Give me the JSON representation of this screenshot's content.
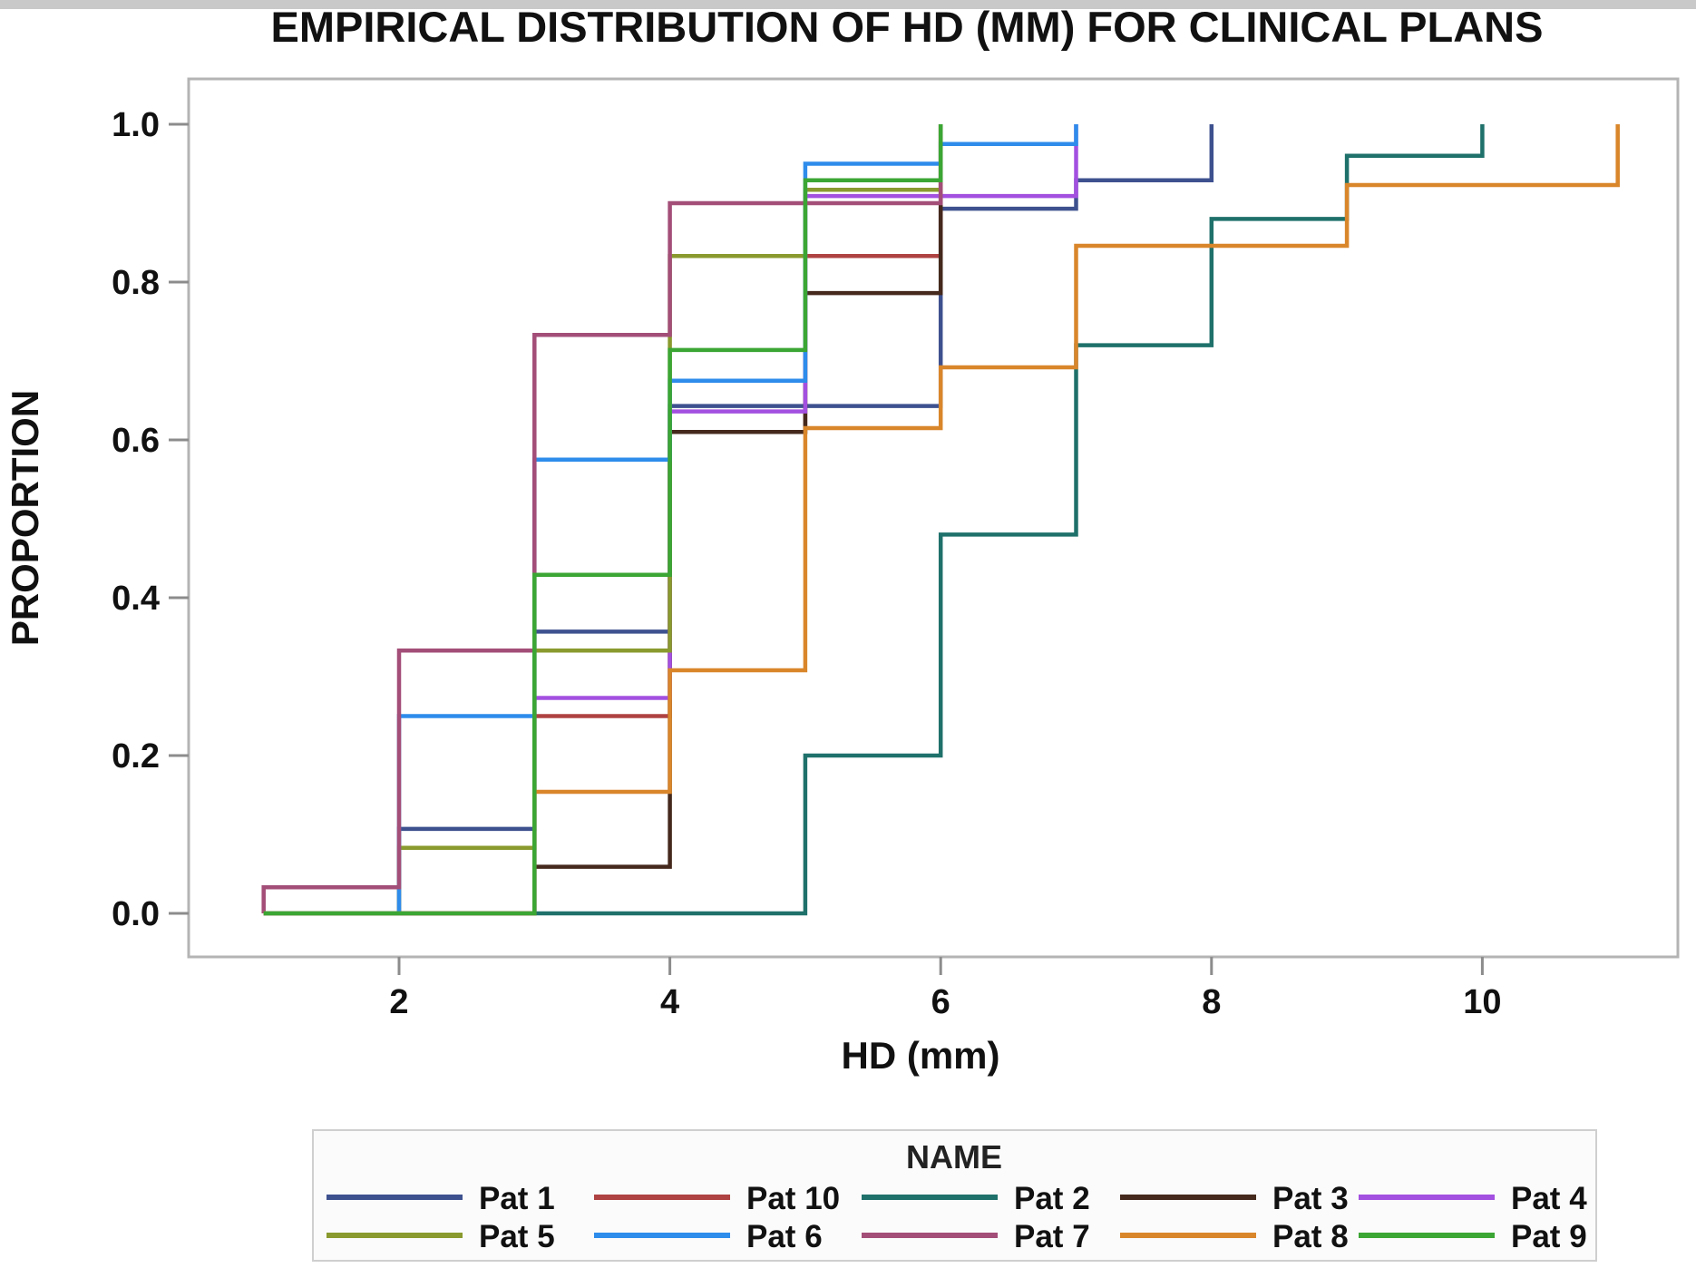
{
  "page": {
    "title": "EMPIRICAL DISTRIBUTION OF HD (MM) FOR CLINICAL PLANS"
  },
  "chart_data": {
    "type": "line",
    "subtype": "step-ecdf",
    "title": "EMPIRICAL DISTRIBUTION OF HD (MM) FOR CLINICAL PLANS",
    "xlabel": "HD (mm)",
    "ylabel": "PROPORTION",
    "xlim": [
      0.45,
      11.35
    ],
    "ylim": [
      -0.06,
      1.06
    ],
    "x_ticks": [
      2,
      4,
      6,
      8,
      10
    ],
    "y_ticks": [
      "0.0",
      "0.2",
      "0.4",
      "0.6",
      "0.8",
      "1.0"
    ],
    "grid": false,
    "legend_title": "NAME",
    "legend_position": "bottom",
    "legend_rows": [
      [
        "Pat 1",
        "Pat 10",
        "Pat 2",
        "Pat 3",
        "Pat 4"
      ],
      [
        "Pat 5",
        "Pat 6",
        "Pat 7",
        "Pat 8",
        "Pat 9"
      ]
    ],
    "note": "Each series is an empirical CDF; steps listed as [HD_mm, proportion]; every curve starts at proportion 0 at HD=1 and is drawn in the order given (later series overdraw earlier ones where segments coincide).",
    "series": [
      {
        "name": "Pat 1",
        "color": "#3E518F",
        "steps": [
          [
            2,
            0.107
          ],
          [
            3,
            0.357
          ],
          [
            4,
            0.643
          ],
          [
            6,
            0.893
          ],
          [
            7,
            0.929
          ],
          [
            8,
            1.0
          ]
        ]
      },
      {
        "name": "Pat 10",
        "color": "#AF4242",
        "steps": [
          [
            3,
            0.25
          ],
          [
            4,
            0.61
          ],
          [
            5,
            0.833
          ],
          [
            6,
            1.0
          ]
        ]
      },
      {
        "name": "Pat 2",
        "color": "#1F716B",
        "steps": [
          [
            5,
            0.2
          ],
          [
            6,
            0.48
          ],
          [
            7,
            0.72
          ],
          [
            8,
            0.88
          ],
          [
            9,
            0.96
          ],
          [
            10,
            1.0
          ]
        ]
      },
      {
        "name": "Pat 3",
        "color": "#45291C",
        "steps": [
          [
            3,
            0.059
          ],
          [
            4,
            0.61
          ],
          [
            5,
            0.786
          ],
          [
            6,
            1.0
          ]
        ]
      },
      {
        "name": "Pat 4",
        "color": "#A350E0",
        "steps": [
          [
            3,
            0.273
          ],
          [
            4,
            0.636
          ],
          [
            5,
            0.909
          ],
          [
            7,
            1.0
          ]
        ]
      },
      {
        "name": "Pat 5",
        "color": "#8A9A2E",
        "steps": [
          [
            2,
            0.083
          ],
          [
            3,
            0.333
          ],
          [
            4,
            0.833
          ],
          [
            5,
            0.917
          ],
          [
            6,
            1.0
          ]
        ]
      },
      {
        "name": "Pat 6",
        "color": "#2E8CEB",
        "steps": [
          [
            2,
            0.25
          ],
          [
            3,
            0.575
          ],
          [
            4,
            0.675
          ],
          [
            5,
            0.95
          ],
          [
            6,
            0.975
          ],
          [
            7,
            1.0
          ]
        ]
      },
      {
        "name": "Pat 7",
        "color": "#A34E78",
        "steps": [
          [
            1,
            0.033
          ],
          [
            2,
            0.333
          ],
          [
            3,
            0.733
          ],
          [
            4,
            0.9
          ],
          [
            6,
            1.0
          ]
        ]
      },
      {
        "name": "Pat 8",
        "color": "#D9862B",
        "steps": [
          [
            3,
            0.154
          ],
          [
            4,
            0.308
          ],
          [
            5,
            0.615
          ],
          [
            6,
            0.692
          ],
          [
            7,
            0.846
          ],
          [
            9,
            0.923
          ],
          [
            11,
            1.0
          ]
        ]
      },
      {
        "name": "Pat 9",
        "color": "#3BA634",
        "steps": [
          [
            3,
            0.429
          ],
          [
            4,
            0.714
          ],
          [
            5,
            0.929
          ],
          [
            6,
            1.0
          ]
        ]
      }
    ]
  }
}
